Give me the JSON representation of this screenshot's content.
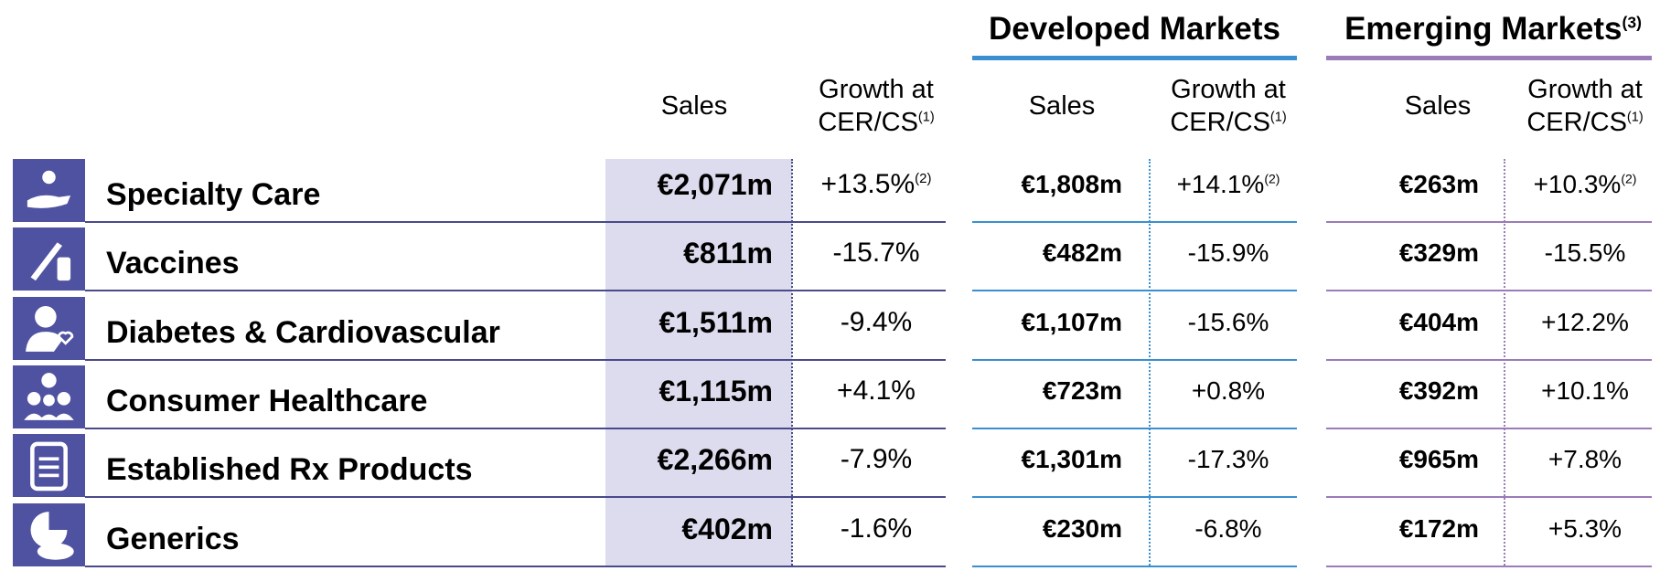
{
  "groups": [
    {
      "title": "Developed Markets"
    },
    {
      "title": "Emerging Markets",
      "note": "(3)"
    }
  ],
  "columns": [
    {
      "label": "Sales"
    },
    {
      "label": "Growth at CER/CS",
      "note": "(1)"
    },
    {
      "label": "Sales"
    },
    {
      "label": "Growth at CER/CS",
      "note": "(1)"
    },
    {
      "label": "Sales"
    },
    {
      "label": "Growth at CER/CS",
      "note": "(1)"
    }
  ],
  "rows": [
    {
      "label": "Specialty Care",
      "cells": [
        {
          "text": "€2,071m"
        },
        {
          "text": "+13.5%",
          "note": "(2)"
        },
        {
          "text": "€1,808m"
        },
        {
          "text": "+14.1%",
          "note": "(2)"
        },
        {
          "text": "€263m"
        },
        {
          "text": "+10.3%",
          "note": "(2)"
        }
      ]
    },
    {
      "label": "Vaccines",
      "cells": [
        {
          "text": "€811m"
        },
        {
          "text": "-15.7%"
        },
        {
          "text": "€482m"
        },
        {
          "text": "-15.9%"
        },
        {
          "text": "€329m"
        },
        {
          "text": "-15.5%"
        }
      ]
    },
    {
      "label": "Diabetes & Cardiovascular",
      "cells": [
        {
          "text": "€1,511m"
        },
        {
          "text": "-9.4%"
        },
        {
          "text": "€1,107m"
        },
        {
          "text": "-15.6%"
        },
        {
          "text": "€404m"
        },
        {
          "text": "+12.2%"
        }
      ]
    },
    {
      "label": "Consumer Healthcare",
      "cells": [
        {
          "text": "€1,115m"
        },
        {
          "text": "+4.1%"
        },
        {
          "text": "€723m"
        },
        {
          "text": "+0.8%"
        },
        {
          "text": "€392m"
        },
        {
          "text": "+10.1%"
        }
      ]
    },
    {
      "label": "Established Rx Products",
      "cells": [
        {
          "text": "€2,266m"
        },
        {
          "text": "-7.9%"
        },
        {
          "text": "€1,301m"
        },
        {
          "text": "-17.3%"
        },
        {
          "text": "€965m"
        },
        {
          "text": "+7.8%"
        }
      ]
    },
    {
      "label": "Generics",
      "cells": [
        {
          "text": "€402m"
        },
        {
          "text": "-1.6%"
        },
        {
          "text": "€230m"
        },
        {
          "text": "-6.8%"
        },
        {
          "text": "€172m"
        },
        {
          "text": "+5.3%"
        }
      ]
    }
  ]
}
